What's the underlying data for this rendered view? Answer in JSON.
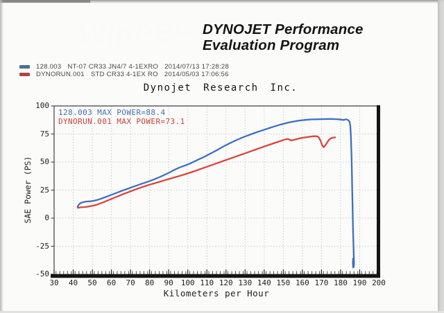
{
  "page": {
    "header": {
      "logo_text": "WinPEP",
      "program_title_line1": "DYNOJET Performance",
      "program_title_line2": "Evaluation Program"
    },
    "runs": [
      {
        "id": "128.003",
        "description": "NT-07 CR33 JN4/7 4-1EXRO",
        "timestamp": "2014/07/13 17:28:28",
        "color": "#4e6e99"
      },
      {
        "id": "DYNORUN.001",
        "description": "STD CR33 4-1EX RO",
        "timestamp": "2014/05/03 17:06:56",
        "color": "#b5443c"
      }
    ],
    "chart_title": "Dynojet Research Inc."
  },
  "chart_data": {
    "type": "line",
    "title": "Dynojet Research Inc.",
    "xlabel": "Kilometers per Hour",
    "ylabel": "SAE Power (PS)",
    "xlim": [
      30,
      200
    ],
    "ylim": [
      -50,
      100
    ],
    "x_ticks": [
      30,
      40,
      50,
      60,
      70,
      80,
      90,
      100,
      110,
      120,
      130,
      140,
      150,
      160,
      170,
      180,
      190,
      200
    ],
    "y_ticks": [
      100,
      75,
      50,
      25,
      0,
      -25,
      -50
    ],
    "grid": true,
    "grid_color": "#c7cfc9",
    "legend_position": "top-left-inside",
    "legend": [
      {
        "label": "128.003  MAX POWER=88.4",
        "color": "#3f72b8"
      },
      {
        "label": "DYNORUN.001  MAX POWER=73.1",
        "color": "#cc4036"
      }
    ],
    "series": [
      {
        "name": "128.003",
        "max_power": 88.4,
        "color": "#3c6fc6",
        "points": [
          [
            42.3,
            10.2
          ],
          [
            43,
            12.2
          ],
          [
            44,
            13.6
          ],
          [
            45.5,
            14.4
          ],
          [
            47,
            14.8
          ],
          [
            49,
            15.0
          ],
          [
            51,
            15.5
          ],
          [
            53,
            16.4
          ],
          [
            55,
            17.6
          ],
          [
            57,
            18.8
          ],
          [
            59,
            20.1
          ],
          [
            61,
            21.4
          ],
          [
            63,
            22.7
          ],
          [
            65,
            24.0
          ],
          [
            67,
            25.3
          ],
          [
            69,
            26.5
          ],
          [
            71,
            27.7
          ],
          [
            73,
            28.9
          ],
          [
            75,
            30.1
          ],
          [
            77,
            31.3
          ],
          [
            79,
            32.5
          ],
          [
            81,
            33.7
          ],
          [
            83,
            35.0
          ],
          [
            85,
            36.4
          ],
          [
            87,
            37.9
          ],
          [
            89,
            39.5
          ],
          [
            91,
            41.2
          ],
          [
            93,
            43.0
          ],
          [
            95,
            44.6
          ],
          [
            97,
            45.9
          ],
          [
            99,
            47.2
          ],
          [
            101,
            48.6
          ],
          [
            103,
            50.2
          ],
          [
            105,
            51.8
          ],
          [
            107,
            53.4
          ],
          [
            109,
            55.0
          ],
          [
            111,
            56.8
          ],
          [
            113,
            58.6
          ],
          [
            115,
            60.4
          ],
          [
            117,
            62.3
          ],
          [
            119,
            64.2
          ],
          [
            121,
            65.9
          ],
          [
            123,
            67.6
          ],
          [
            125,
            69.2
          ],
          [
            127,
            70.7
          ],
          [
            129,
            72.1
          ],
          [
            131,
            73.4
          ],
          [
            133,
            74.7
          ],
          [
            135,
            75.9
          ],
          [
            137,
            77.1
          ],
          [
            139,
            78.2
          ],
          [
            141,
            79.4
          ],
          [
            143,
            80.5
          ],
          [
            145,
            81.6
          ],
          [
            147,
            82.6
          ],
          [
            149,
            83.6
          ],
          [
            151,
            84.5
          ],
          [
            153,
            85.3
          ],
          [
            155,
            86.0
          ],
          [
            157,
            86.6
          ],
          [
            159,
            87.1
          ],
          [
            161,
            87.5
          ],
          [
            163,
            87.8
          ],
          [
            165,
            88.0
          ],
          [
            167,
            88.1
          ],
          [
            169,
            88.2
          ],
          [
            171,
            88.3
          ],
          [
            173,
            88.4
          ],
          [
            175,
            88.4
          ],
          [
            177,
            88.3
          ],
          [
            179,
            88.1
          ],
          [
            180.5,
            87.8
          ],
          [
            181.5,
            87.5
          ],
          [
            182.3,
            87.9
          ],
          [
            183,
            88.1
          ],
          [
            183.6,
            87.7
          ],
          [
            184.2,
            87.0
          ],
          [
            184.7,
            85.8
          ],
          [
            185.1,
            82.0
          ],
          [
            185.4,
            73.0
          ],
          [
            185.7,
            58.0
          ],
          [
            185.9,
            42.0
          ],
          [
            186.1,
            25.0
          ],
          [
            186.3,
            8.0
          ],
          [
            186.5,
            -8.0
          ],
          [
            186.7,
            -22.0
          ],
          [
            186.9,
            -33.0
          ],
          [
            187.05,
            -40.0
          ],
          [
            186.9,
            -43.5
          ],
          [
            186.6,
            -44.0
          ],
          [
            186.4,
            -40.0
          ],
          [
            186.55,
            -36.0
          ]
        ]
      },
      {
        "name": "DYNORUN.001",
        "max_power": 73.1,
        "color": "#d8443a",
        "points": [
          [
            42.3,
            9.2
          ],
          [
            44,
            9.6
          ],
          [
            46,
            9.9
          ],
          [
            48,
            10.3
          ],
          [
            50,
            10.9
          ],
          [
            52,
            11.8
          ],
          [
            54,
            13.0
          ],
          [
            56,
            14.3
          ],
          [
            58,
            15.7
          ],
          [
            60,
            17.1
          ],
          [
            62,
            18.5
          ],
          [
            64,
            19.9
          ],
          [
            66,
            21.3
          ],
          [
            68,
            22.6
          ],
          [
            70,
            23.9
          ],
          [
            72,
            25.2
          ],
          [
            74,
            26.4
          ],
          [
            76,
            27.6
          ],
          [
            78,
            28.7
          ],
          [
            80,
            29.8
          ],
          [
            82,
            30.8
          ],
          [
            84,
            31.8
          ],
          [
            86,
            32.8
          ],
          [
            88,
            33.8
          ],
          [
            90,
            34.8
          ],
          [
            92,
            35.8
          ],
          [
            94,
            36.8
          ],
          [
            96,
            37.8
          ],
          [
            98,
            38.8
          ],
          [
            100,
            39.9
          ],
          [
            102.5,
            41.3
          ],
          [
            105,
            42.8
          ],
          [
            107.5,
            44.3
          ],
          [
            110,
            45.8
          ],
          [
            112.5,
            47.3
          ],
          [
            115,
            48.8
          ],
          [
            117.5,
            50.3
          ],
          [
            120,
            51.8
          ],
          [
            122.5,
            53.3
          ],
          [
            125,
            54.8
          ],
          [
            127.5,
            56.3
          ],
          [
            130,
            57.8
          ],
          [
            132.5,
            59.3
          ],
          [
            135,
            60.8
          ],
          [
            137.5,
            62.3
          ],
          [
            140,
            63.8
          ],
          [
            142.5,
            65.3
          ],
          [
            145,
            66.7
          ],
          [
            147,
            67.9
          ],
          [
            149,
            69.0
          ],
          [
            150.5,
            69.9
          ],
          [
            152,
            70.6
          ],
          [
            153,
            70.2
          ],
          [
            154,
            69.3
          ],
          [
            155,
            69.5
          ],
          [
            156.5,
            70.1
          ],
          [
            158,
            70.9
          ],
          [
            160,
            71.6
          ],
          [
            162,
            72.1
          ],
          [
            164,
            72.6
          ],
          [
            166,
            73.0
          ],
          [
            167,
            73.1
          ],
          [
            168,
            72.8
          ],
          [
            168.8,
            71.5
          ],
          [
            169.6,
            68.5
          ],
          [
            170.4,
            64.8
          ],
          [
            171,
            63.3
          ],
          [
            171.8,
            64.5
          ],
          [
            172.8,
            67.0
          ],
          [
            173.8,
            69.5
          ],
          [
            174.8,
            71.0
          ],
          [
            176,
            71.8
          ],
          [
            177.2,
            72.0
          ]
        ]
      }
    ]
  }
}
